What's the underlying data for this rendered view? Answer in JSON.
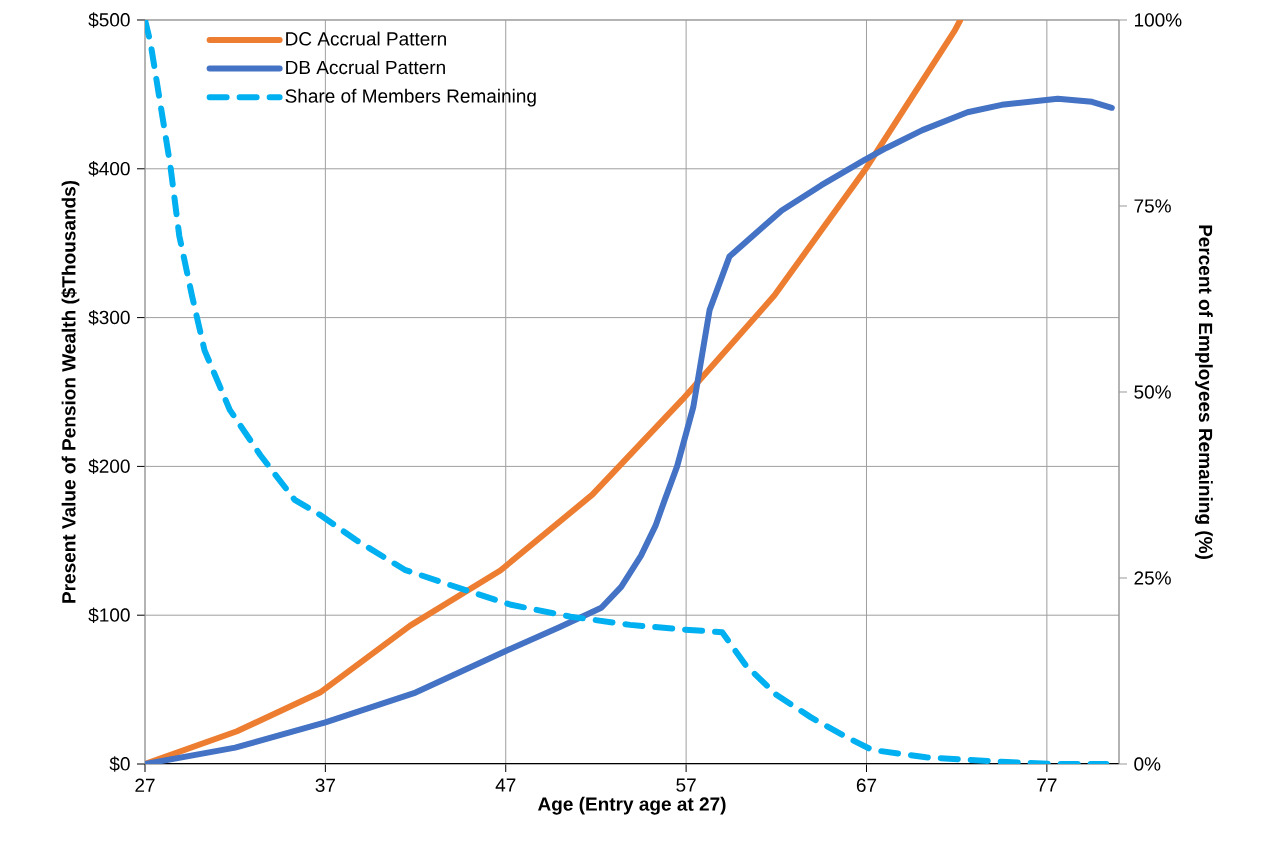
{
  "chart_data": {
    "type": "line",
    "xlabel": "Age (Entry age at 27)",
    "ylabel": "Present Value of Pension Wealth ($Thousands)",
    "y2label": "Percent of Employees Remaining (%)",
    "xlim": [
      27,
      81
    ],
    "xticks": [
      27,
      37,
      47,
      57,
      67,
      77
    ],
    "ylim": [
      0,
      500
    ],
    "yticks": [
      {
        "value": 0,
        "label": "$0"
      },
      {
        "value": 100,
        "label": "$100"
      },
      {
        "value": 200,
        "label": "$200"
      },
      {
        "value": 300,
        "label": "$300"
      },
      {
        "value": 400,
        "label": "$400"
      },
      {
        "value": 500,
        "label": "$500"
      }
    ],
    "y2lim": [
      0,
      100
    ],
    "y2ticks": [
      {
        "value": 0,
        "label": "0%"
      },
      {
        "value": 25,
        "label": "25%"
      },
      {
        "value": 50,
        "label": "50%"
      },
      {
        "value": 75,
        "label": "75%"
      },
      {
        "value": 100,
        "label": "100%"
      }
    ],
    "grid": true,
    "legend": "top left",
    "series": [
      {
        "name": "DC Accrual Pattern",
        "color": "#ed7d31",
        "line_style": "solid",
        "x": [
          27,
          32.1,
          36.7,
          41.7,
          46.7,
          51.8,
          56.8,
          61.9,
          66.9,
          71.9,
          72.2
        ],
        "values": [
          0,
          22,
          48,
          93,
          130,
          181,
          245,
          315,
          399,
          493,
          500
        ]
      },
      {
        "name": "DB Accrual Pattern",
        "color": "#4472c4",
        "line_style": "solid",
        "x": [
          27,
          32,
          37,
          42,
          47,
          50,
          52.3,
          53.4,
          54.5,
          55.3,
          55.8,
          56.5,
          57.4,
          58.3,
          59.4,
          62.3,
          64.5,
          66.9,
          68.1,
          70.1,
          72.6,
          74.5,
          77.6,
          79.5,
          80.6
        ],
        "values": [
          0,
          11,
          28,
          48,
          76,
          92,
          105,
          119,
          140,
          160,
          177,
          200,
          240,
          305,
          341,
          372,
          389,
          406,
          414,
          426,
          438,
          443,
          447,
          445,
          441
        ]
      },
      {
        "name": "Share of Members Remaining",
        "color": "#00b0f0",
        "line_style": "dashed",
        "axis": "y2",
        "x": [
          27,
          27.3,
          28.4,
          28.9,
          29.6,
          30.3,
          31.7,
          33.4,
          35.3,
          36.7,
          38.7,
          41.4,
          45.1,
          47.3,
          50.6,
          53.9,
          56.7,
          59,
          60.3,
          62,
          63.9,
          65.9,
          67.3,
          70.3,
          74.5,
          77.3,
          80.3
        ],
        "values": [
          100,
          97,
          80.5,
          71,
          63,
          55.6,
          47.6,
          41.5,
          35.5,
          33.5,
          30.1,
          26.1,
          23.1,
          21.4,
          19.8,
          18.7,
          18.1,
          17.7,
          13.3,
          9.3,
          6.3,
          3.6,
          1.9,
          0.9,
          0.3,
          0,
          0
        ]
      }
    ]
  }
}
